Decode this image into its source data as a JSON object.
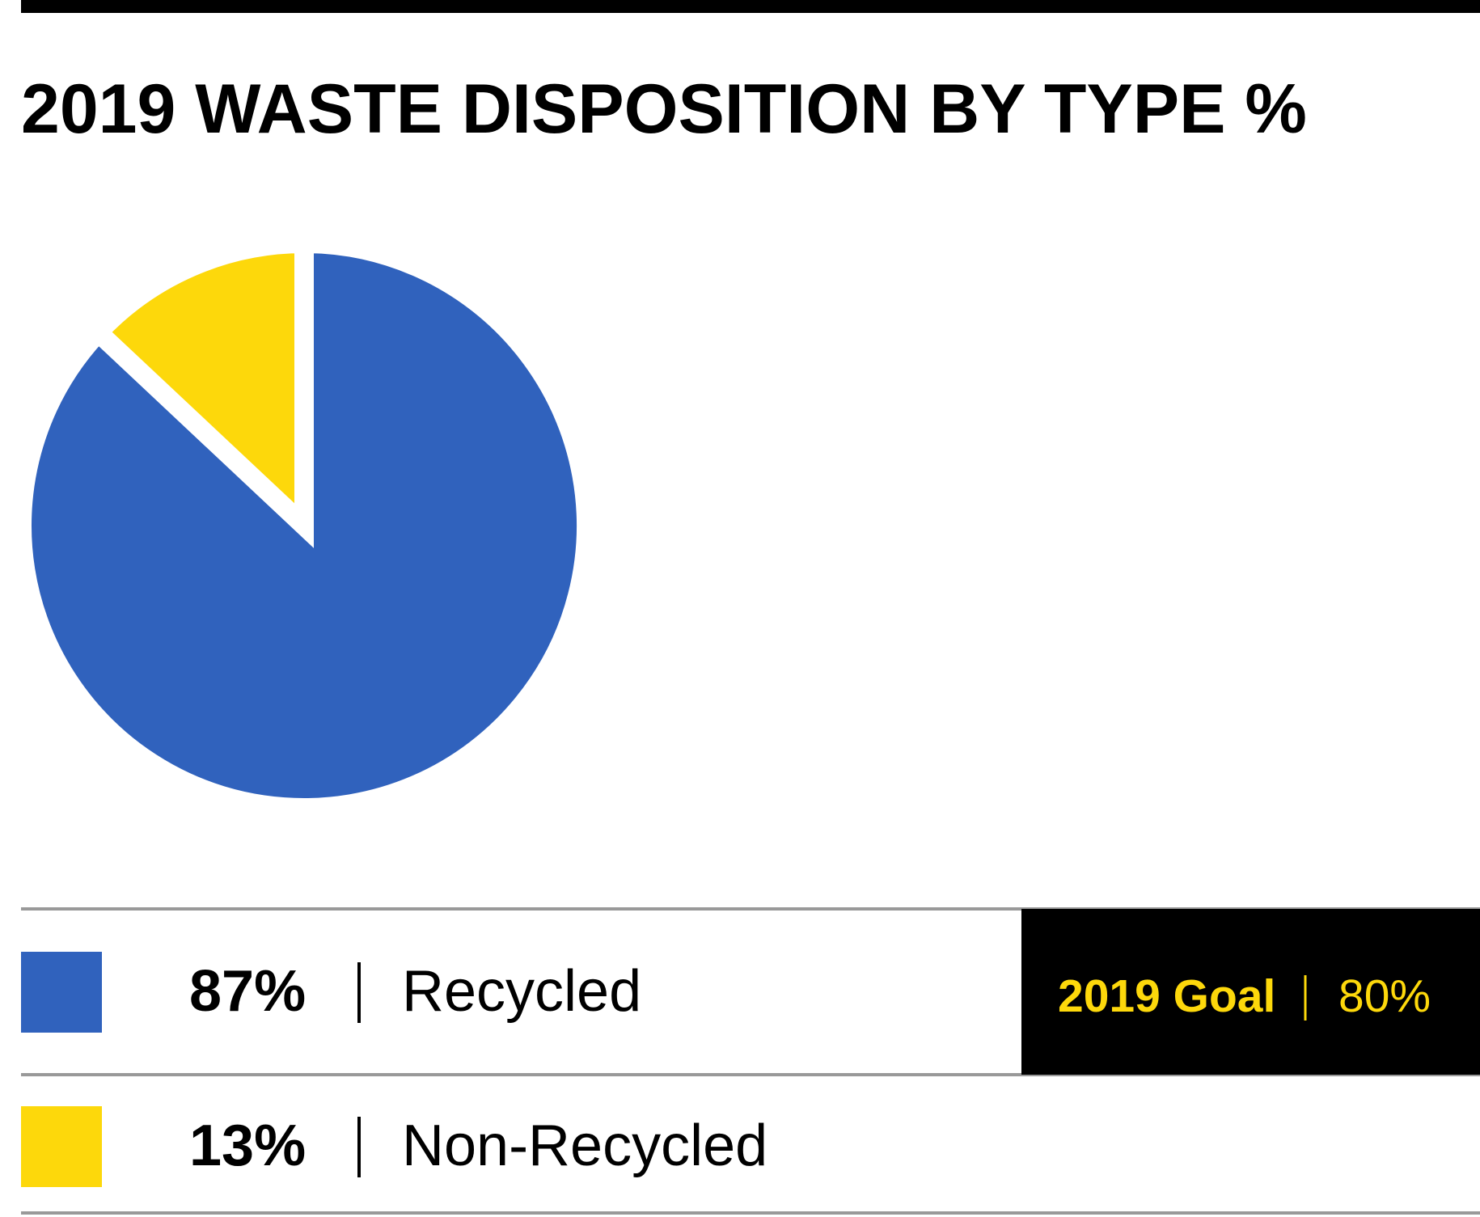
{
  "chart_data": {
    "type": "pie",
    "title": "2019 WASTE DISPOSITION BY TYPE %",
    "categories": [
      "Recycled",
      "Non-Recycled"
    ],
    "values": [
      87,
      13
    ],
    "value_labels": [
      "87%",
      "13%"
    ],
    "colors": [
      "#3062bd",
      "#fdd80b"
    ],
    "goal": {
      "label": "2019 Goal",
      "value": "80%"
    }
  }
}
